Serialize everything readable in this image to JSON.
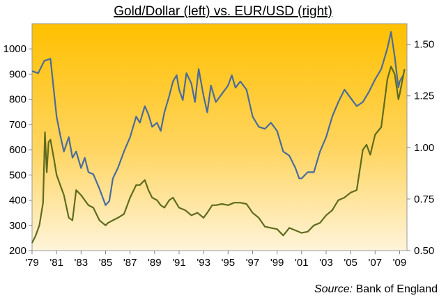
{
  "chart_data": {
    "type": "line",
    "title": "Gold/Dollar (left) vs. EUR/USD (right)",
    "source_label": "Source:",
    "source_text": " Bank of England",
    "x_ticks": [
      "'79",
      "'81",
      "'83",
      "'85",
      "'87",
      "'89",
      "'91",
      "'93",
      "'95",
      "'97",
      "'99",
      "'01",
      "'03",
      "'05",
      "'07",
      "'09"
    ],
    "y_left_ticks": [
      "1000",
      "900",
      "800",
      "700",
      "600",
      "500",
      "400",
      "300",
      "200"
    ],
    "y_right_ticks": [
      "1.50",
      "1.25",
      "1.00",
      "0.75",
      "0.50"
    ],
    "xlim": [
      1979,
      2009.6
    ],
    "ylim_left": [
      200,
      1100
    ],
    "ylim_right": [
      0.5,
      1.6
    ],
    "grid": false,
    "series": [
      {
        "axis": "right",
        "color": "#4a6b9b",
        "x": [
          1979.0,
          1979.5,
          1980.0,
          1980.5,
          1981.0,
          1981.3,
          1981.6,
          1982.0,
          1982.3,
          1982.6,
          1983.0,
          1983.3,
          1983.6,
          1984.0,
          1984.5,
          1985.0,
          1985.3,
          1985.6,
          1986.0,
          1986.5,
          1987.0,
          1987.5,
          1987.8,
          1988.2,
          1988.5,
          1988.8,
          1989.2,
          1989.5,
          1989.8,
          1990.2,
          1990.5,
          1990.8,
          1991.0,
          1991.3,
          1991.6,
          1992.0,
          1992.3,
          1992.6,
          1993.0,
          1993.3,
          1993.6,
          1994.0,
          1994.5,
          1995.0,
          1995.3,
          1995.6,
          1996.0,
          1996.5,
          1997.0,
          1997.5,
          1998.0,
          1998.5,
          1999.0,
          1999.5,
          2000.0,
          2000.5,
          2000.8,
          2001.0,
          2001.5,
          2002.0,
          2002.5,
          2003.0,
          2003.5,
          2004.0,
          2004.5,
          2005.0,
          2005.5,
          2006.0,
          2006.5,
          2007.0,
          2007.5,
          2008.0,
          2008.3,
          2008.6,
          2008.9,
          2009.0,
          2009.3
        ],
        "values": [
          1.37,
          1.36,
          1.42,
          1.43,
          1.15,
          1.06,
          0.98,
          1.05,
          0.95,
          0.98,
          0.9,
          0.95,
          0.88,
          0.87,
          0.8,
          0.72,
          0.74,
          0.85,
          0.9,
          0.98,
          1.05,
          1.15,
          1.12,
          1.2,
          1.16,
          1.1,
          1.12,
          1.08,
          1.17,
          1.25,
          1.32,
          1.35,
          1.28,
          1.23,
          1.36,
          1.31,
          1.22,
          1.38,
          1.25,
          1.17,
          1.3,
          1.22,
          1.26,
          1.3,
          1.35,
          1.29,
          1.32,
          1.28,
          1.15,
          1.1,
          1.09,
          1.12,
          1.08,
          0.98,
          0.96,
          0.9,
          0.85,
          0.85,
          0.88,
          0.88,
          0.98,
          1.05,
          1.15,
          1.22,
          1.28,
          1.24,
          1.2,
          1.22,
          1.27,
          1.33,
          1.38,
          1.48,
          1.56,
          1.44,
          1.29,
          1.32,
          1.35
        ]
      },
      {
        "axis": "left",
        "color": "#5f6b1f",
        "x": [
          1979.0,
          1979.3,
          1979.6,
          1979.9,
          1980.05,
          1980.2,
          1980.35,
          1980.5,
          1980.8,
          1981.0,
          1981.3,
          1981.6,
          1982.0,
          1982.3,
          1982.6,
          1983.0,
          1983.3,
          1983.6,
          1984.0,
          1984.5,
          1985.0,
          1985.2,
          1985.6,
          1986.0,
          1986.5,
          1987.0,
          1987.5,
          1987.8,
          1988.2,
          1988.5,
          1988.8,
          1989.2,
          1989.5,
          1989.8,
          1990.2,
          1990.5,
          1991.0,
          1991.5,
          1992.0,
          1992.5,
          1993.0,
          1993.3,
          1993.7,
          1994.0,
          1994.5,
          1995.0,
          1995.5,
          1996.0,
          1996.5,
          1997.0,
          1997.5,
          1998.0,
          1998.5,
          1999.0,
          1999.5,
          2000.0,
          2000.5,
          2001.0,
          2001.5,
          2002.0,
          2002.5,
          2003.0,
          2003.5,
          2004.0,
          2004.5,
          2005.0,
          2005.5,
          2006.0,
          2006.3,
          2006.6,
          2007.0,
          2007.5,
          2008.0,
          2008.3,
          2008.6,
          2008.9,
          2009.0,
          2009.2,
          2009.4
        ],
        "values": [
          230,
          260,
          300,
          390,
          670,
          510,
          630,
          640,
          560,
          500,
          460,
          420,
          330,
          320,
          440,
          420,
          400,
          380,
          370,
          320,
          300,
          310,
          320,
          330,
          345,
          410,
          460,
          460,
          480,
          440,
          410,
          400,
          380,
          370,
          400,
          410,
          370,
          360,
          340,
          350,
          330,
          350,
          380,
          380,
          385,
          380,
          390,
          390,
          385,
          350,
          330,
          295,
          290,
          285,
          260,
          290,
          280,
          270,
          275,
          300,
          310,
          340,
          360,
          400,
          410,
          430,
          440,
          600,
          620,
          580,
          660,
          690,
          880,
          930,
          900,
          800,
          820,
          870,
          920
        ]
      }
    ]
  }
}
